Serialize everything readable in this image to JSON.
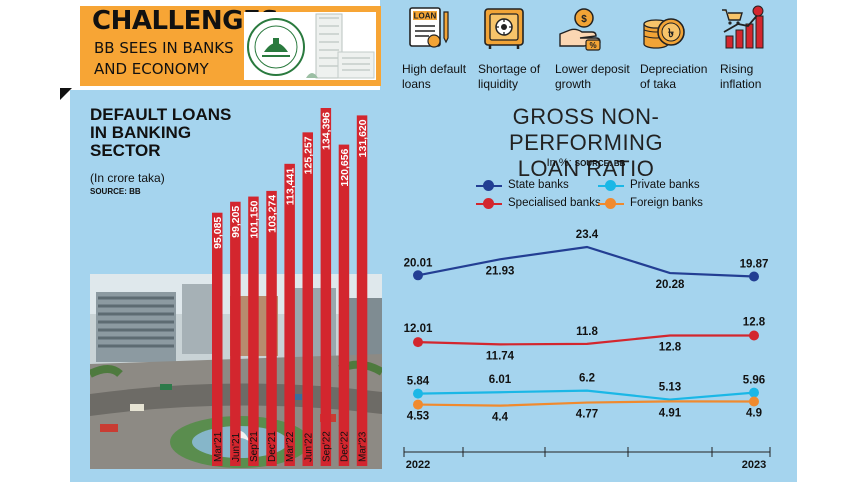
{
  "header": {
    "title": "CHALLENGES",
    "subtitle_line1": "BB SEES IN BANKS",
    "subtitle_line2": "AND ECONOMY"
  },
  "issues": [
    {
      "line1": "High default",
      "line2": "loans",
      "icon": "loan-document-icon"
    },
    {
      "line1": "Shortage of",
      "line2": "liquidity",
      "icon": "safe-vault-icon"
    },
    {
      "line1": "Lower deposit",
      "line2": "growth",
      "icon": "hand-coin-icon"
    },
    {
      "line1": "Depreciation",
      "line2": "of taka",
      "icon": "coin-stack-icon"
    },
    {
      "line1": "Rising",
      "line2": "inflation",
      "icon": "cart-rising-chart-icon"
    }
  ],
  "default_loans": {
    "title": "DEFAULT LOANS IN BANKING SECTOR",
    "unit": "(In crore taka)",
    "source": "SOURCE: BB"
  },
  "npl": {
    "title_line1": "GROSS NON-PERFORMING",
    "title_line2": "LOAN RATIO",
    "unit": "In %;",
    "source": "SOURCE: BB",
    "legend": [
      {
        "name": "State banks",
        "color": "#233e93"
      },
      {
        "name": "Private banks",
        "color": "#1ab7e6"
      },
      {
        "name": "Specialised banks",
        "color": "#d3262e"
      },
      {
        "name": "Foreign banks",
        "color": "#f08a2e"
      }
    ]
  },
  "chart_data": [
    {
      "type": "bar",
      "title": "DEFAULT LOANS IN BANKING SECTOR",
      "ylabel": "In crore taka",
      "categories": [
        "Mar'21",
        "Jun'21",
        "Sep'21",
        "Dec'21",
        "Mar'22",
        "Jun'22",
        "Sep'22",
        "Dec'22",
        "Mar'23"
      ],
      "values": [
        95085,
        99205,
        101150,
        103274,
        113441,
        125257,
        134396,
        120656,
        131620
      ],
      "value_labels": [
        "95,085",
        "99,205",
        "101,150",
        "103,274",
        "113,441",
        "125,257",
        "134,396",
        "120,656",
        "131,620"
      ],
      "color": "#d3262e",
      "ylim": [
        0,
        140000
      ]
    },
    {
      "type": "line",
      "title": "GROSS NON-PERFORMING LOAN RATIO",
      "ylabel": "In %",
      "x": [
        0,
        1,
        2,
        3,
        4
      ],
      "x_tick_labels": [
        "2022",
        "",
        "",
        "",
        "2023"
      ],
      "ylim": [
        4,
        24
      ],
      "series": [
        {
          "name": "State banks",
          "color": "#233e93",
          "values": [
            20.01,
            21.93,
            23.4,
            20.28,
            19.87
          ],
          "labels": [
            "20.01",
            "21.93",
            "23.4",
            "20.28",
            "19.87"
          ]
        },
        {
          "name": "Specialised banks",
          "color": "#d3262e",
          "values": [
            12.01,
            11.74,
            11.8,
            12.8,
            12.8
          ],
          "labels": [
            "12.01",
            "11.74",
            "11.8",
            "12.8",
            "12.8"
          ]
        },
        {
          "name": "Private banks",
          "color": "#1ab7e6",
          "values": [
            5.84,
            6.01,
            6.2,
            5.13,
            5.96
          ],
          "labels": [
            "5.84",
            "6.01",
            "6.2",
            "5.13",
            "5.96"
          ]
        },
        {
          "name": "Foreign banks",
          "color": "#f08a2e",
          "values": [
            4.53,
            4.4,
            4.77,
            4.91,
            4.9
          ],
          "labels": [
            "4.53",
            "4.4",
            "4.77",
            "4.91",
            "4.9"
          ]
        }
      ]
    }
  ]
}
